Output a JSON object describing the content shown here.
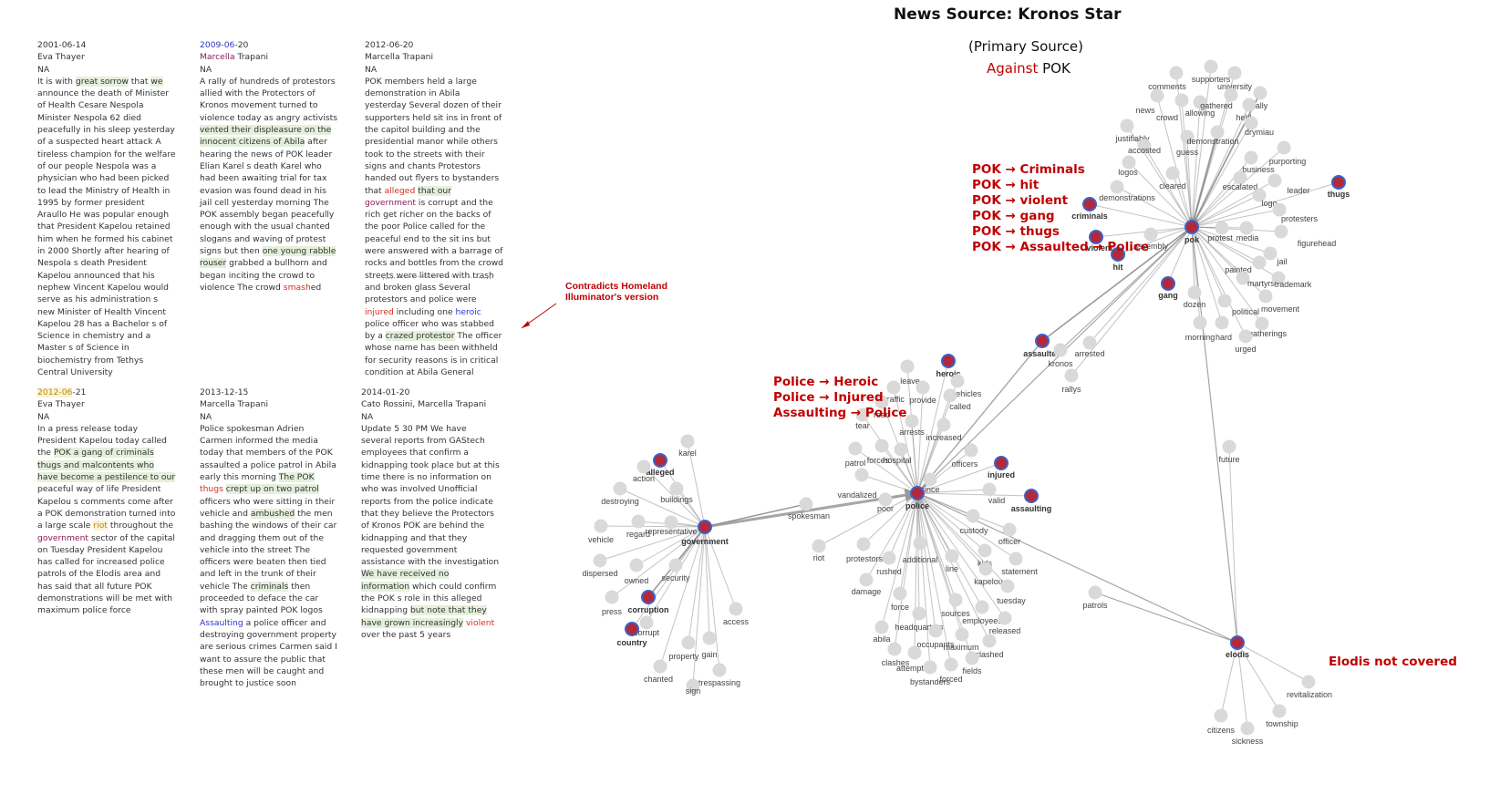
{
  "title": "News Source: Kronos Star",
  "subtitle": "(Primary Source)",
  "stance": {
    "against": "Against",
    "target": "POK"
  },
  "colors": {
    "callout": "#c00000",
    "node": "#d9d9d9",
    "key_node_fill": "#b3283a",
    "key_node_ring": "#3b63c9",
    "edge": "#888888"
  },
  "articles": [
    {
      "date": "2001-06-14",
      "author": "Eva Thayer",
      "source": "NA",
      "segments": [
        [
          "It is with "
        ],
        [
          "great sorrow",
          "green"
        ],
        [
          " that "
        ],
        [
          "we",
          "green"
        ],
        [
          " announce the death of Minister of Health Cesare Nespola Minister Nespola 62 died peacefully in his sleep yesterday of a suspected heart attack A tireless champion for the welfare of our people Nespola was a physician who had been picked to lead the Ministry of Health in 1995 by former president Araullo He was popular enough that President Kapelou retained him when he formed his cabinet in 2000 Shortly after hearing of Nespola s death President Kapelou announced that his nephew Vincent Kapelou would serve as his administration s new Minister of Health Vincent Kapelou 28 has a Bachelor s of Science in chemistry and a Master s of Science in biochemistry from Tethys Central University"
        ]
      ]
    },
    {
      "date": "2009-06-20",
      "author": "Marcella Trapani",
      "source": "NA",
      "segments": [
        [
          "A rally of hundreds of protestors allied with the Protectors of Kronos movement turned to violence today as angry activists "
        ],
        [
          "vented their displeasure on the innocent citizens of Abila",
          "green"
        ],
        [
          " after hearing the news of POK leader Elian Karel s death Karel who had been awaiting trial for tax evasion was found dead in his jail cell yesterday morning The POK assembly began peacefully enough with the usual chanted slogans and waving of protest signs but then "
        ],
        [
          "one young rabble rouser",
          "green"
        ],
        [
          " grabbed a bullhorn and began inciting the crowd to violence The crowd "
        ],
        [
          "smash",
          "red"
        ],
        [
          "ed"
        ]
      ]
    },
    {
      "date": "2012-06-20",
      "author": "Marcella Trapani",
      "source": "NA",
      "segments": [
        [
          "POK members held a large demonstration in Abila yesterday Several dozen of their supporters held sit ins in front of the capitol building and the presidential manor while others took to the streets with their signs and chants Protestors handed out flyers to bystanders that "
        ],
        [
          "alleged",
          "red"
        ],
        [
          " "
        ],
        [
          "that our",
          "green"
        ],
        [
          " "
        ],
        [
          "government",
          "purple"
        ],
        [
          " is corrupt and the rich get richer on the backs of the poor Police called for the peaceful end to the sit ins but were answered with a barrage of rocks and bottles from the crowd streets were littered with trash and broken glass Several protestors and police were "
        ],
        [
          "injured",
          "red"
        ],
        [
          " including one "
        ],
        [
          "heroic",
          "blue"
        ],
        [
          " police officer who was stabbed by a "
        ],
        [
          "crazed protestor",
          "green"
        ],
        [
          " The officer whose name has been withheld for security reasons is in critical condition at Abila General"
        ]
      ]
    },
    {
      "date": "2012-06-21",
      "author": "Eva Thayer",
      "source": "NA",
      "segments": [
        [
          "In a press release today President Kapelou today called the "
        ],
        [
          "POK a gang of criminals thugs and malcontents who have become a pestilence to our",
          "green"
        ],
        [
          " peaceful way of life President Kapelou s comments come after a POK demonstration turned into a large scale "
        ],
        [
          "riot",
          "yellow"
        ],
        [
          " throughout the "
        ],
        [
          "government",
          "purple"
        ],
        [
          " sector of the capital on Tuesday President Kapelou has called for increased police patrols of the Elodis area and has said that all future POK demonstrations will be met with maximum police force"
        ]
      ]
    },
    {
      "date": "2013-12-15",
      "author": "Marcella Trapani",
      "source": "NA",
      "segments": [
        [
          "Police spokesman Adrien Carmen informed the media today that members of the POK assaulted a police patrol in Abila early this morning "
        ],
        [
          "The POK",
          "green"
        ],
        [
          " "
        ],
        [
          "thugs",
          "red"
        ],
        [
          " "
        ],
        [
          "crept up on two patrol",
          "green"
        ],
        [
          " officers who were sitting in their vehicle and "
        ],
        [
          "ambushed",
          "green"
        ],
        [
          " the men bashing the windows of their car and dragging them out of the vehicle into the street The officers were beaten then tied and left in the trunk of their vehicle The "
        ],
        [
          "criminals",
          "green"
        ],
        [
          " then proceeded to deface the car with spray painted POK logos "
        ],
        [
          "Assaulting",
          "blue"
        ],
        [
          " a police officer and destroying government property are serious crimes Carmen said I want to assure the public that these men will be caught and brought to justice soon"
        ]
      ]
    },
    {
      "date": "2014-01-20",
      "author": "Cato Rossini, Marcella Trapani",
      "source": "NA",
      "segments": [
        [
          "Update 5 30 PM We have several reports from GAStech employees that confirm a kidnapping took place but at this time there is no information on who was involved Unofficial reports from the police indicate that they believe the Protectors of Kronos POK are behind the kidnapping and that they requested government assistance with the investigation "
        ],
        [
          "We have received no information",
          "green"
        ],
        [
          " which could confirm the POK s role in this alleged kidnapping "
        ],
        [
          "but note that they have grown increasingly",
          "green"
        ],
        [
          " "
        ],
        [
          "violent",
          "red"
        ],
        [
          " over the past 5 years"
        ]
      ]
    }
  ],
  "annotations": {
    "contradicts": [
      "Contradicts Homeland",
      "Illuminator's version"
    ],
    "pok_callouts": [
      "POK → Criminals",
      "POK → hit",
      "POK → violent",
      "POK → gang",
      "POK → thugs",
      "POK → Assaulted → Police"
    ],
    "police_callouts": [
      "Police → Heroic",
      "Police → Injured",
      "Assaulting → Police"
    ],
    "elodis_note": "Elodis not covered"
  },
  "graph": {
    "hubs": [
      "pok",
      "police",
      "government",
      "elodis"
    ],
    "key_nodes": [
      "thugs",
      "criminals",
      "violent",
      "hit",
      "gang",
      "assaulted",
      "heroic",
      "injured",
      "assaulting",
      "alleged",
      "corruption",
      "country"
    ],
    "node_labels": [
      "comments",
      "supporters",
      "university",
      "news",
      "crowd",
      "allowing",
      "gathered",
      "rally",
      "held",
      "drymiau",
      "justifiably",
      "accosted",
      "guess",
      "demonstration",
      "cleared",
      "purporting",
      "business",
      "logos",
      "escalated",
      "leader",
      "logo",
      "thugs",
      "criminals",
      "demonstrations",
      "protesters",
      "pok",
      "violent",
      "assembly",
      "protest",
      "media",
      "figurehead",
      "hit",
      "jail",
      "gang",
      "painted",
      "martyrs",
      "trademark",
      "dozen",
      "political",
      "movement",
      "morning",
      "hard",
      "gatherings",
      "urged",
      "assaulted",
      "arrested",
      "kronos",
      "rallys",
      "heroic",
      "leave",
      "vehicles",
      "traffic",
      "provide",
      "called",
      "road",
      "tear",
      "arrests",
      "increased",
      "patrol",
      "forces",
      "hospital",
      "officers",
      "injured",
      "vandalized",
      "since",
      "police",
      "valid",
      "assaulting",
      "poor",
      "spokesman",
      "custody",
      "officer",
      "riot",
      "protestors",
      "additional",
      "kids",
      "statement",
      "rushed",
      "line",
      "kapelou",
      "damage",
      "tuesday",
      "force",
      "sources",
      "employees",
      "headquarters",
      "released",
      "abila",
      "occupants",
      "maximum",
      "clashed",
      "clashes",
      "attempted",
      "fields",
      "bystanders",
      "forced",
      "future",
      "patrols",
      "elodis",
      "revitalization",
      "township",
      "citizens",
      "sickness",
      "karel",
      "alleged",
      "action",
      "buildings",
      "destroying",
      "representative",
      "regard",
      "vehicle",
      "government",
      "dispersed",
      "owned",
      "security",
      "corruption",
      "press",
      "access",
      "corrupt",
      "country",
      "property",
      "gain",
      "chanted",
      "trespassing",
      "sign"
    ]
  }
}
